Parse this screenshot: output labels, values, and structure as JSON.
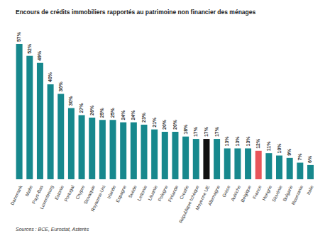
{
  "chart_data": {
    "type": "bar",
    "title": "Encours de crédits immobiliers rapportés au patrimoine non financier des ménages",
    "subtitle": "Sources : BCE, Eurostat, Asterès",
    "categories": [
      "Danemark",
      "Malte",
      "Pays-Bas",
      "Luxembourg",
      "Estonie",
      "Portugal",
      "Chypre",
      "Slovaquie",
      "Royaume-Uni",
      "Irlande",
      "Espagne",
      "Suède",
      "Lettonie",
      "Lituanie",
      "Pologne",
      "Finlande",
      "Croatie",
      "République tchèque",
      "Moyenne UE",
      "Allemagne",
      "Grèce",
      "Autriche",
      "Belgique",
      "France",
      "Hongrie",
      "Slovénie",
      "Bulgarie",
      "Roumanie",
      "Italie"
    ],
    "values": [
      57,
      52,
      49,
      40,
      36,
      30,
      27,
      26,
      25,
      25,
      24,
      24,
      23,
      21,
      20,
      20,
      18,
      17,
      17,
      17,
      13,
      13,
      13,
      12,
      11,
      10,
      9,
      7,
      6
    ],
    "value_labels": [
      "57%",
      "52%",
      "49%",
      "40%",
      "36%",
      "30%",
      "27%",
      "26%",
      "25%",
      "25%",
      "24%",
      "24%",
      "23%",
      "21%",
      "20%",
      "20%",
      "18%",
      "17%",
      "17%",
      "17%",
      "13%",
      "13%",
      "13%",
      "12%",
      "11%",
      "10%",
      "9%",
      "7%",
      "6%"
    ],
    "colors": [
      "#17888d",
      "#17888d",
      "#17888d",
      "#17888d",
      "#17888d",
      "#17888d",
      "#17888d",
      "#17888d",
      "#17888d",
      "#17888d",
      "#17888d",
      "#17888d",
      "#17888d",
      "#17888d",
      "#17888d",
      "#17888d",
      "#17888d",
      "#17888d",
      "#111111",
      "#17888d",
      "#17888d",
      "#17888d",
      "#17888d",
      "#e8555a",
      "#17888d",
      "#17888d",
      "#17888d",
      "#17888d",
      "#17888d"
    ],
    "ylim": [
      0,
      60
    ],
    "data_labels": true,
    "tick_labels": "x",
    "grid": false
  }
}
